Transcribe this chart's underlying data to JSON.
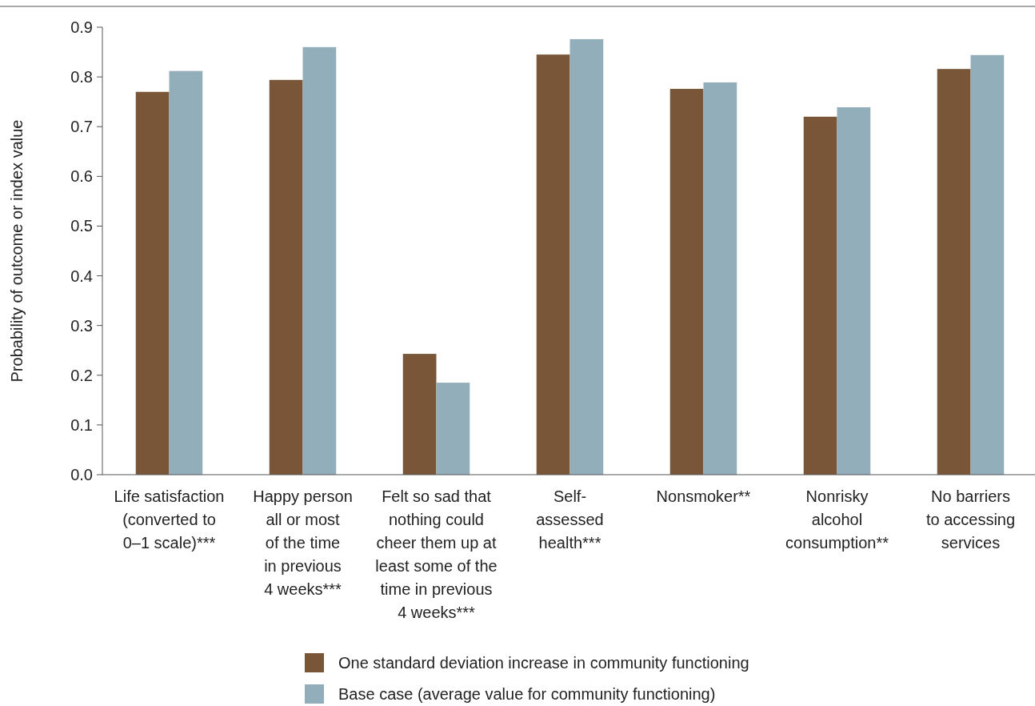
{
  "chart_data": {
    "type": "bar",
    "ylabel": "Probability of outcome or index value",
    "categories": [
      "Life satisfaction\n(converted to\n0–1 scale)***",
      "Happy person\nall or most\nof the time\nin previous\n4 weeks***",
      "Felt so sad that\nnothing could\ncheer them up at\nleast some of the\ntime in previous\n4 weeks***",
      "Self-\nassessed\nhealth***",
      "Nonsmoker**",
      "Nonrisky\nalcohol\nconsumption**",
      "No barriers\nto accessing\nservices"
    ],
    "series": [
      {
        "name": "One standard deviation increase in community functioning",
        "color": "#7a5638",
        "values": [
          0.77,
          0.794,
          0.243,
          0.845,
          0.776,
          0.72,
          0.816
        ]
      },
      {
        "name": "Base case (average value for community functioning)",
        "color": "#93aebb",
        "values": [
          0.812,
          0.86,
          0.185,
          0.876,
          0.789,
          0.739,
          0.844
        ]
      }
    ],
    "ylim": [
      0,
      0.9
    ],
    "yticks": [
      {
        "value": 0,
        "label": "0.0"
      },
      0.1,
      0.2,
      0.3,
      0.4,
      0.5,
      0.6,
      0.7,
      0.8,
      0.9
    ],
    "grid": false,
    "legend": "bottom"
  }
}
